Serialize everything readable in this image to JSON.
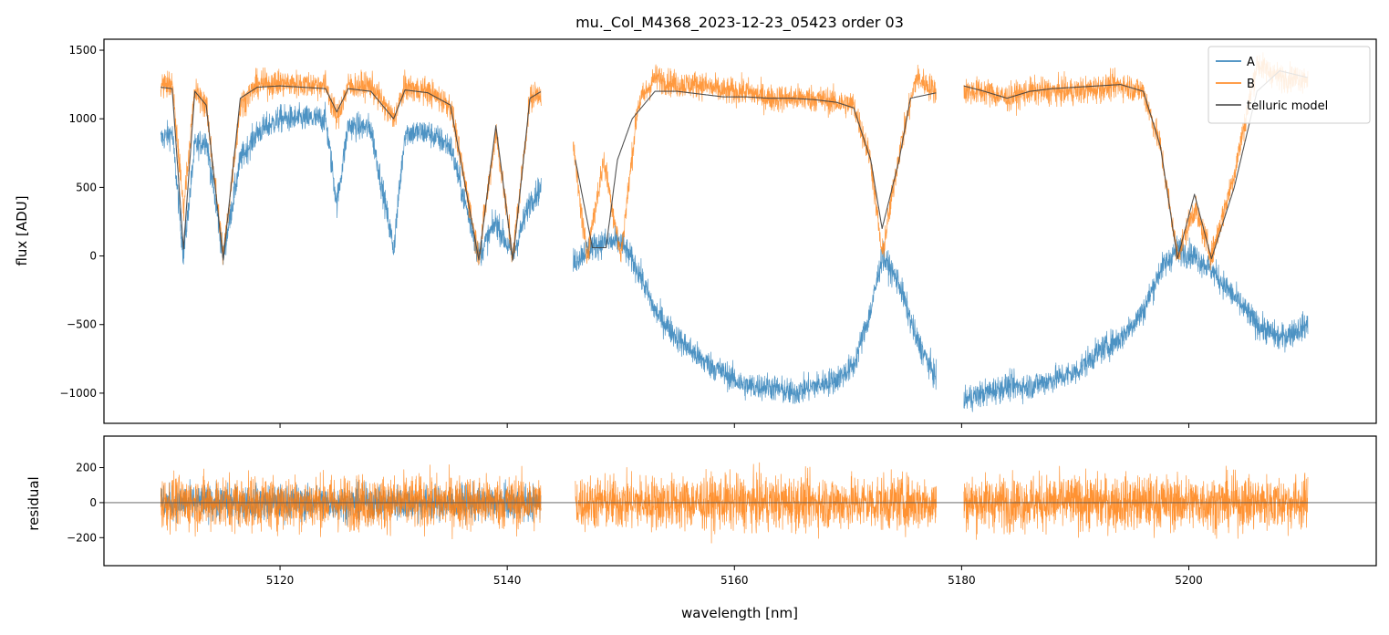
{
  "chart_data": {
    "type": "line",
    "title": "mu._Col_M4368_2023-12-23_05423  order 03",
    "xlabel": "wavelength [nm]",
    "xlim": [
      5104.5,
      5216.5
    ],
    "xticks": [
      5120,
      5140,
      5160,
      5180,
      5200
    ],
    "top_panel": {
      "ylabel": "flux [ADU]",
      "ylim": [
        -1220,
        1580
      ],
      "yticks": [
        -1000,
        -500,
        0,
        500,
        1000,
        1500
      ],
      "legend": {
        "placement": "top-right",
        "entries": [
          "A",
          "B",
          "telluric model"
        ]
      },
      "series": [
        {
          "name": "A",
          "color": "#1f77b4",
          "segments": [
            {
              "x": [
                5109.5,
                5110.5,
                5111.5,
                5112.5,
                5113.5,
                5115,
                5116.5,
                5118,
                5120,
                5122,
                5124,
                5125,
                5126,
                5128,
                5130,
                5131,
                5133,
                5135,
                5137.5,
                5139,
                5140.5,
                5142,
                5143
              ],
              "y": [
                850,
                900,
                0,
                800,
                850,
                0,
                700,
                900,
                1000,
                1000,
                1000,
                380,
                950,
                930,
                50,
                900,
                900,
                800,
                0,
                250,
                0,
                400,
                500
              ]
            },
            {
              "x": [
                5145.8,
                5147,
                5148.5,
                5150,
                5151.5,
                5153,
                5155,
                5157,
                5159,
                5161,
                5163,
                5165,
                5167,
                5169,
                5170.5,
                5172,
                5173,
                5174.5,
                5176,
                5177.8
              ],
              "y": [
                -50,
                50,
                100,
                100,
                -100,
                -400,
                -600,
                -750,
                -850,
                -950,
                -950,
                -1000,
                -950,
                -900,
                -800,
                -400,
                0,
                -200,
                -600,
                -900
              ]
            },
            {
              "x": [
                5180.2,
                5182,
                5184,
                5186,
                5188,
                5190,
                5192,
                5194,
                5196,
                5197.5,
                5199,
                5200.5,
                5202,
                5204,
                5206,
                5208,
                5210.5
              ],
              "y": [
                -1050,
                -1000,
                -950,
                -950,
                -900,
                -850,
                -700,
                -600,
                -400,
                -100,
                50,
                0,
                -100,
                -300,
                -500,
                -600,
                -500
              ]
            }
          ]
        },
        {
          "name": "B",
          "color": "#ff7f0e",
          "segments": [
            {
              "x": [
                5109.5,
                5110.5,
                5111.5,
                5112.5,
                5113.5,
                5115,
                5116.5,
                5118,
                5120,
                5122,
                5124,
                5125,
                5126,
                5128,
                5130,
                5131,
                5133,
                5135,
                5137.5,
                5139,
                5140.5,
                5142,
                5143
              ],
              "y": [
                1250,
                1250,
                350,
                1200,
                1100,
                0,
                1100,
                1250,
                1260,
                1250,
                1250,
                1000,
                1240,
                1240,
                1000,
                1230,
                1200,
                1100,
                0,
                900,
                0,
                1150,
                1200
              ]
            },
            {
              "x": [
                5145.8,
                5147,
                5148.5,
                5150,
                5151.5,
                5153,
                5155,
                5157,
                5159,
                5161,
                5163,
                5165,
                5167,
                5169,
                5170.5,
                5172,
                5173,
                5174.5,
                5176,
                5177.8
              ],
              "y": [
                800,
                0,
                700,
                0,
                1100,
                1300,
                1250,
                1250,
                1200,
                1200,
                1150,
                1150,
                1150,
                1120,
                1100,
                700,
                0,
                750,
                1300,
                1200
              ]
            },
            {
              "x": [
                5180.2,
                5182,
                5184,
                5186,
                5188,
                5190,
                5192,
                5194,
                5196,
                5197.5,
                5199,
                5200.5,
                5202,
                5204,
                5206,
                5208,
                5210.5
              ],
              "y": [
                1200,
                1200,
                1150,
                1200,
                1200,
                1200,
                1220,
                1250,
                1200,
                800,
                0,
                350,
                0,
                600,
                1400,
                1300,
                1300
              ]
            }
          ]
        },
        {
          "name": "telluric model",
          "color": "#404040",
          "segments": [
            {
              "x": [
                5109.5,
                5110.5,
                5111.5,
                5112.5,
                5113.5,
                5115,
                5116.5,
                5118,
                5120,
                5122,
                5124,
                5125,
                5126,
                5128,
                5130,
                5131,
                5133,
                5135,
                5137.5,
                5139,
                5140.5,
                5142,
                5143
              ],
              "y": [
                1230,
                1220,
                50,
                1200,
                1100,
                -30,
                1150,
                1230,
                1240,
                1230,
                1220,
                1050,
                1220,
                1200,
                1000,
                1210,
                1190,
                1100,
                -30,
                950,
                -30,
                1150,
                1200
              ]
            },
            {
              "x": [
                5146,
                5147.5,
                5148.7,
                5149.7,
                5151,
                5153,
                5155,
                5157,
                5159,
                5161,
                5163,
                5165,
                5167,
                5169,
                5170.5,
                5172,
                5173,
                5174.5,
                5175.5,
                5177.8
              ],
              "y": [
                700,
                60,
                60,
                700,
                1000,
                1200,
                1200,
                1180,
                1160,
                1160,
                1150,
                1150,
                1140,
                1120,
                1080,
                700,
                200,
                700,
                1150,
                1190
              ]
            },
            {
              "x": [
                5180.2,
                5182,
                5184,
                5186,
                5188,
                5190,
                5192,
                5194,
                5196,
                5197.5,
                5199,
                5200.5,
                5202,
                5204,
                5206,
                5208,
                5210.5
              ],
              "y": [
                1240,
                1200,
                1150,
                1200,
                1220,
                1230,
                1240,
                1250,
                1200,
                800,
                -20,
                450,
                -20,
                500,
                1200,
                1350,
                1300
              ]
            }
          ]
        }
      ]
    },
    "bottom_panel": {
      "ylabel": "residual",
      "ylim": [
        -360,
        380
      ],
      "yticks": [
        -200,
        0,
        200
      ],
      "zero_line": true,
      "series": [
        {
          "name": "A",
          "color": "#1f77b4",
          "segments": [
            {
              "x": [
                5109.5,
                5120,
                5130,
                5143
              ],
              "y": [
                0,
                0,
                0,
                0
              ]
            }
          ]
        },
        {
          "name": "B",
          "color": "#ff7f0e",
          "segments": [
            {
              "x": [
                5109.5,
                5120,
                5130,
                5143
              ],
              "y": [
                0,
                0,
                0,
                0
              ]
            },
            {
              "x": [
                5146,
                5160,
                5177.8
              ],
              "y": [
                0,
                0,
                0
              ]
            },
            {
              "x": [
                5180.2,
                5195,
                5210.5
              ],
              "y": [
                0,
                0,
                0
              ]
            }
          ]
        }
      ]
    }
  }
}
